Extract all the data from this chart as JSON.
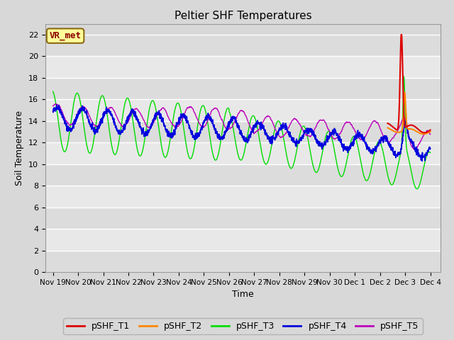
{
  "title": "Peltier SHF Temperatures",
  "ylabel": "Soil Temperature",
  "xlabel": "Time",
  "annotation_text": "VR_met",
  "annotation_color": "#8B0000",
  "annotation_bg": "#FFFF99",
  "annotation_edge": "#8B6914",
  "ylim": [
    0,
    23
  ],
  "yticks": [
    0,
    2,
    4,
    6,
    8,
    10,
    12,
    14,
    16,
    18,
    20,
    22
  ],
  "background_color": "#D8D8D8",
  "plot_bg_color": "#D8D8D8",
  "grid_color": "#FFFFFF",
  "series_colors": {
    "pSHF_T1": "#DD0000",
    "pSHF_T2": "#FF8800",
    "pSHF_T3": "#00DD00",
    "pSHF_T4": "#0000DD",
    "pSHF_T5": "#BB00BB"
  },
  "xtick_labels": [
    "Nov 19",
    "Nov 20",
    "Nov 21",
    "Nov 22",
    "Nov 23",
    "Nov 24",
    "Nov 25",
    "Nov 26",
    "Nov 27",
    "Nov 28",
    "Nov 29",
    "Nov 30",
    "Dec 1",
    "Dec 2",
    "Dec 3",
    "Dec 4"
  ],
  "legend_entries": [
    "pSHF_T1",
    "pSHF_T2",
    "pSHF_T3",
    "pSHF_T4",
    "pSHF_T5"
  ]
}
